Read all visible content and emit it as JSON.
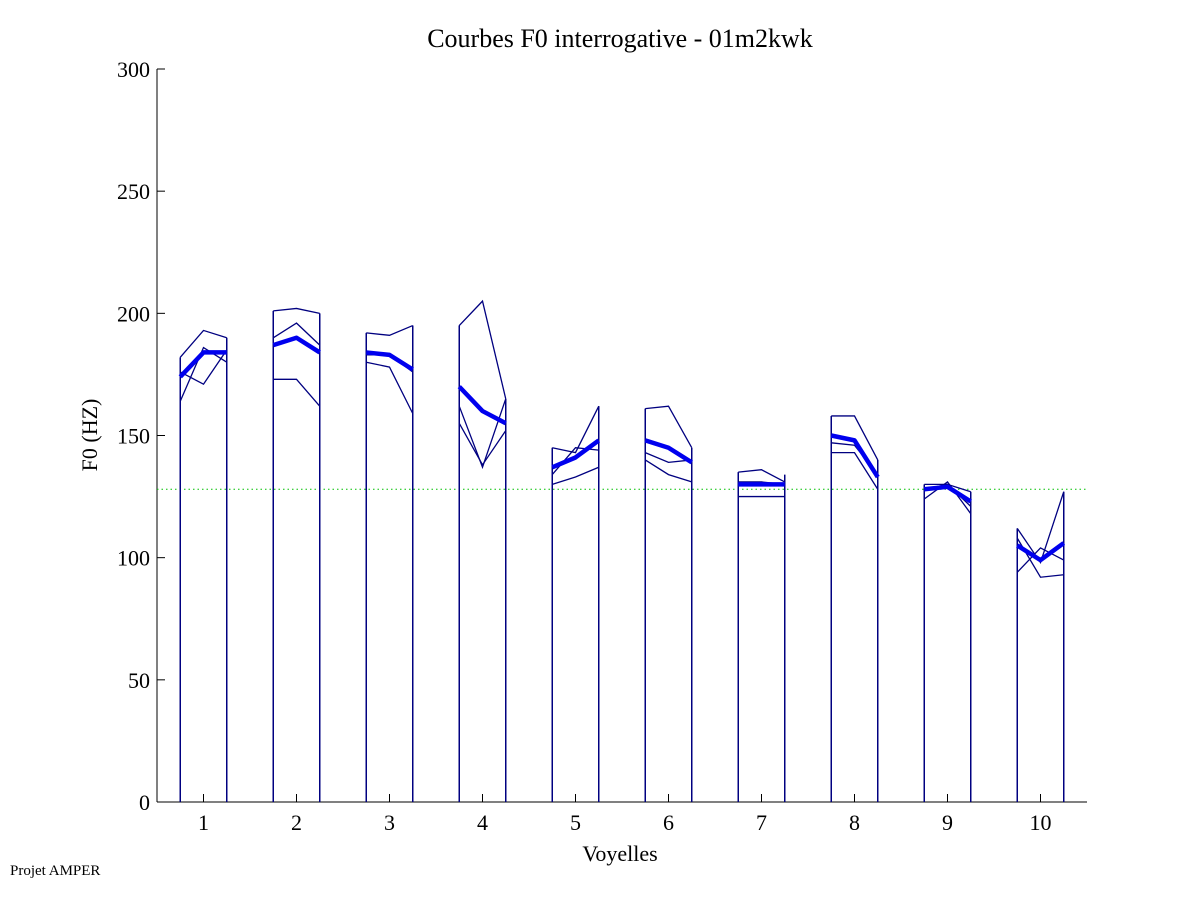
{
  "footer": "Projet AMPER",
  "chart_data": {
    "type": "line",
    "title": "Courbes F0 interrogative - 01m2kwk",
    "xlabel": "Voyelles",
    "ylabel": "F0 (HZ)",
    "xlim": [
      0.5,
      10.5
    ],
    "ylim": [
      0,
      300
    ],
    "y_ticks": [
      0,
      50,
      100,
      150,
      200,
      250,
      300
    ],
    "x_ticks": [
      1,
      2,
      3,
      4,
      5,
      6,
      7,
      8,
      9,
      10
    ],
    "reference_line": {
      "y": 128,
      "style": "dotted",
      "color": "#00c000"
    },
    "colors": {
      "frame": "#000080",
      "mean": "#0000ee",
      "axis": "#000000"
    },
    "vowels": [
      {
        "label": "1",
        "center": 1,
        "start": 0.75,
        "end": 1.25,
        "box_left_top": 182,
        "box_right_top": 190,
        "curves": [
          [
            164,
            186,
            180
          ],
          [
            176,
            171,
            185
          ],
          [
            182,
            193,
            190
          ]
        ],
        "mean": [
          174,
          184,
          184
        ]
      },
      {
        "label": "2",
        "center": 2,
        "start": 1.75,
        "end": 2.25,
        "box_left_top": 201,
        "box_right_top": 200,
        "curves": [
          [
            173,
            173,
            162
          ],
          [
            190,
            196,
            187
          ],
          [
            201,
            202,
            200
          ]
        ],
        "mean": [
          187,
          190,
          184
        ]
      },
      {
        "label": "3",
        "center": 3,
        "start": 2.75,
        "end": 3.25,
        "box_left_top": 192,
        "box_right_top": 195,
        "curves": [
          [
            180,
            178,
            159
          ],
          [
            183,
            183,
            176
          ],
          [
            192,
            191,
            195
          ]
        ],
        "mean": [
          184,
          183,
          177
        ]
      },
      {
        "label": "4",
        "center": 4,
        "start": 3.75,
        "end": 4.25,
        "box_left_top": 195,
        "box_right_top": 165,
        "curves": [
          [
            155,
            138,
            152
          ],
          [
            162,
            137,
            165
          ],
          [
            195,
            205,
            165
          ]
        ],
        "mean": [
          170,
          160,
          155
        ]
      },
      {
        "label": "5",
        "center": 5,
        "start": 4.75,
        "end": 5.25,
        "box_left_top": 145,
        "box_right_top": 162,
        "curves": [
          [
            130,
            133,
            137
          ],
          [
            134,
            145,
            144
          ],
          [
            145,
            143,
            162
          ]
        ],
        "mean": [
          137,
          141,
          148
        ]
      },
      {
        "label": "6",
        "center": 6,
        "start": 5.75,
        "end": 6.25,
        "box_left_top": 161,
        "box_right_top": 145,
        "curves": [
          [
            140,
            134,
            131
          ],
          [
            143,
            139,
            140
          ],
          [
            161,
            162,
            145
          ]
        ],
        "mean": [
          148,
          145,
          139
        ]
      },
      {
        "label": "7",
        "center": 7,
        "start": 6.75,
        "end": 7.25,
        "box_left_top": 135,
        "box_right_top": 134,
        "curves": [
          [
            125,
            125,
            125
          ],
          [
            131,
            131,
            130
          ],
          [
            135,
            136,
            131
          ]
        ],
        "mean": [
          130,
          130,
          130
        ]
      },
      {
        "label": "8",
        "center": 8,
        "start": 7.75,
        "end": 8.25,
        "box_left_top": 158,
        "box_right_top": 140,
        "curves": [
          [
            143,
            143,
            128
          ],
          [
            147,
            146,
            134
          ],
          [
            158,
            158,
            140
          ]
        ],
        "mean": [
          150,
          148,
          133
        ]
      },
      {
        "label": "9",
        "center": 9,
        "start": 8.75,
        "end": 9.25,
        "box_left_top": 130,
        "box_right_top": 127,
        "curves": [
          [
            124,
            131,
            118
          ],
          [
            128,
            130,
            121
          ],
          [
            130,
            130,
            127
          ]
        ],
        "mean": [
          128,
          129,
          123
        ]
      },
      {
        "label": "10",
        "center": 10,
        "start": 9.75,
        "end": 10.25,
        "box_left_top": 112,
        "box_right_top": 127,
        "curves": [
          [
            94,
            104,
            99
          ],
          [
            108,
            92,
            93
          ],
          [
            112,
            98,
            127
          ]
        ],
        "mean": [
          105,
          99,
          106
        ]
      }
    ]
  }
}
